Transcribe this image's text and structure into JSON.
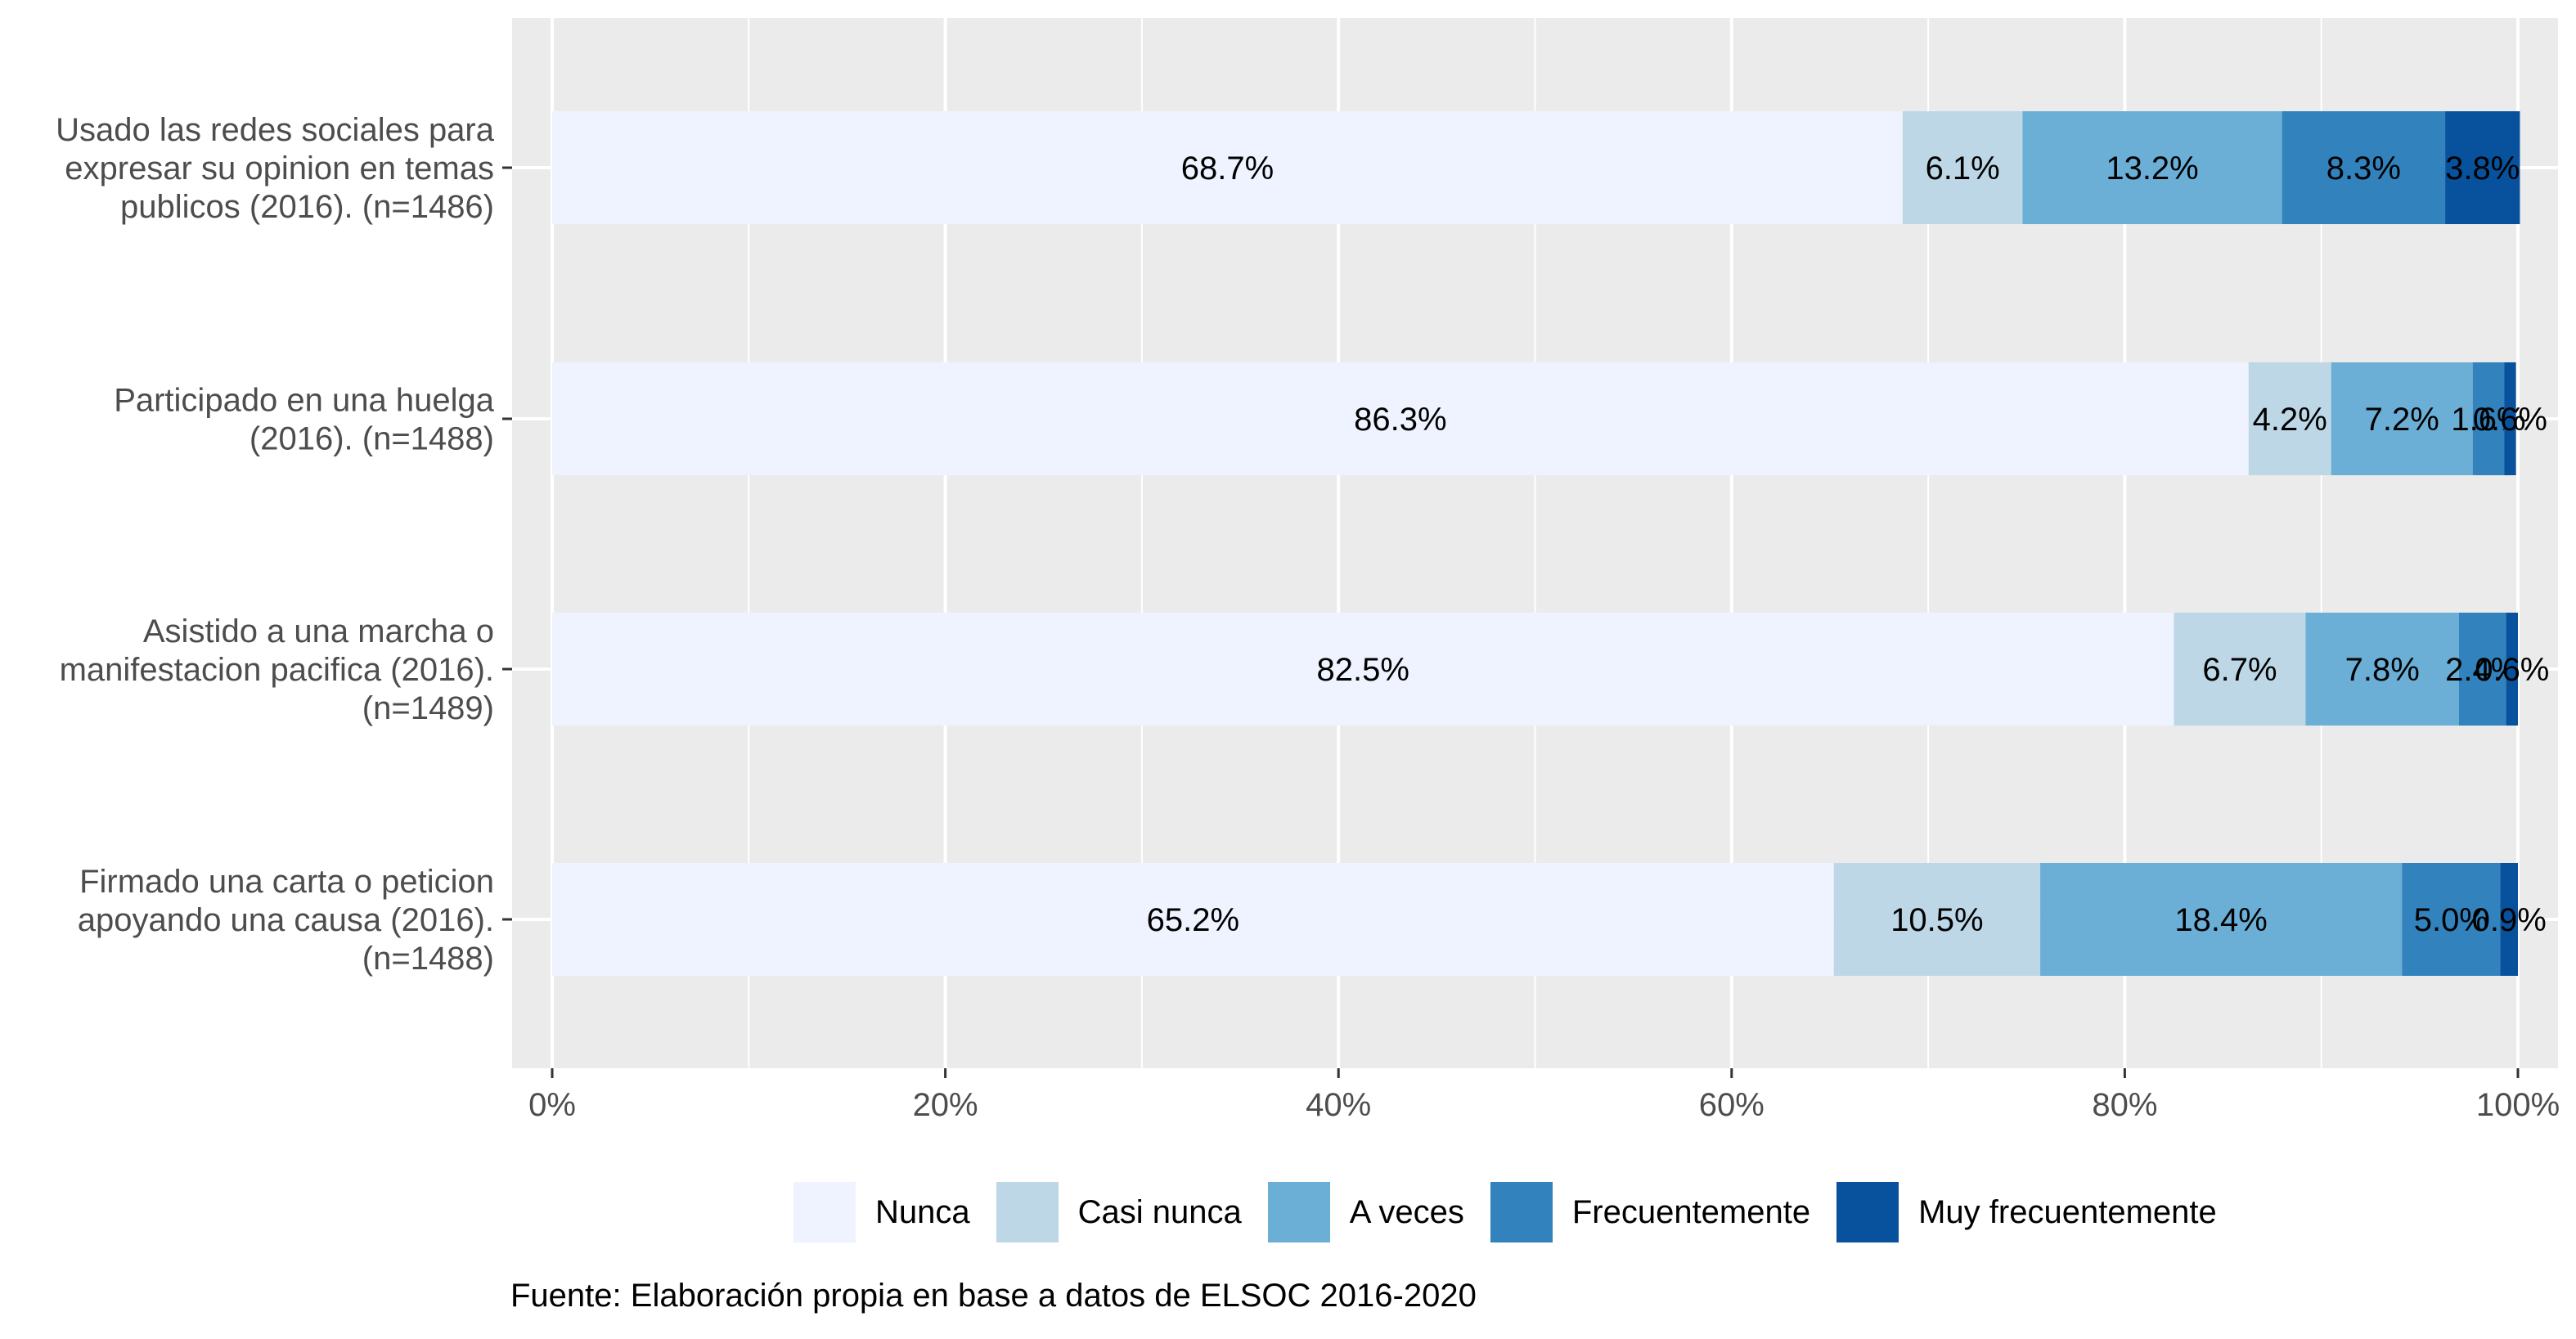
{
  "chart_data": {
    "type": "bar",
    "orientation": "horizontal",
    "stacked": true,
    "categories": [
      "Usado las redes sociales para expresar su opinion en temas publicos (2016). (n=1486)",
      "Participado en una huelga (2016). (n=1488)",
      "Asistido a una marcha o manifestacion pacifica (2016). (n=1489)",
      "Firmado una carta o peticion apoyando una causa (2016). (n=1488)"
    ],
    "category_lines": [
      [
        "Usado las redes sociales para",
        "expresar su opinion en temas",
        "publicos (2016). (n=1486)"
      ],
      [
        "Participado en una huelga",
        "(2016). (n=1488)"
      ],
      [
        "Asistido a una marcha o",
        "manifestacion pacifica (2016).",
        "(n=1489)"
      ],
      [
        "Firmado una carta o peticion",
        "apoyando una causa (2016).",
        "(n=1488)"
      ]
    ],
    "series": [
      {
        "name": "Nunca",
        "color": "#eff3ff",
        "values": [
          68.7,
          86.3,
          82.5,
          65.2
        ],
        "labels": [
          "68.7%",
          "86.3%",
          "82.5%",
          "65.2%"
        ]
      },
      {
        "name": "Casi nunca",
        "color": "#bdd7e7",
        "values": [
          6.1,
          4.2,
          6.7,
          10.5
        ],
        "labels": [
          "6.1%",
          "4.2%",
          "6.7%",
          "10.5%"
        ]
      },
      {
        "name": "A veces",
        "color": "#6baed6",
        "values": [
          13.2,
          7.2,
          7.8,
          18.4
        ],
        "labels": [
          "13.2%",
          "7.2%",
          "7.8%",
          "18.4%"
        ]
      },
      {
        "name": "Frecuentemente",
        "color": "#3182bd",
        "values": [
          8.3,
          1.6,
          2.4,
          5.0
        ],
        "labels": [
          "8.3%",
          "1.6%",
          "2.4%",
          "5.0%"
        ]
      },
      {
        "name": "Muy frecuentemente",
        "color": "#08519c",
        "values": [
          3.8,
          0.6,
          0.6,
          0.9
        ],
        "labels": [
          "3.8%",
          "0.6%",
          "0.6%",
          "0.9%"
        ]
      }
    ],
    "xlim": [
      0,
      100
    ],
    "x_ticks": [
      0,
      20,
      40,
      60,
      80,
      100
    ],
    "x_tick_labels": [
      "0%",
      "20%",
      "40%",
      "60%",
      "80%",
      "100%"
    ],
    "xlabel": "",
    "ylabel": "",
    "grid": true,
    "legend_position": "bottom",
    "panel_color": "#ebebeb",
    "gridline_color": "#ffffff"
  },
  "caption": "Fuente: Elaboración propia en base a datos de ELSOC 2016-2020"
}
